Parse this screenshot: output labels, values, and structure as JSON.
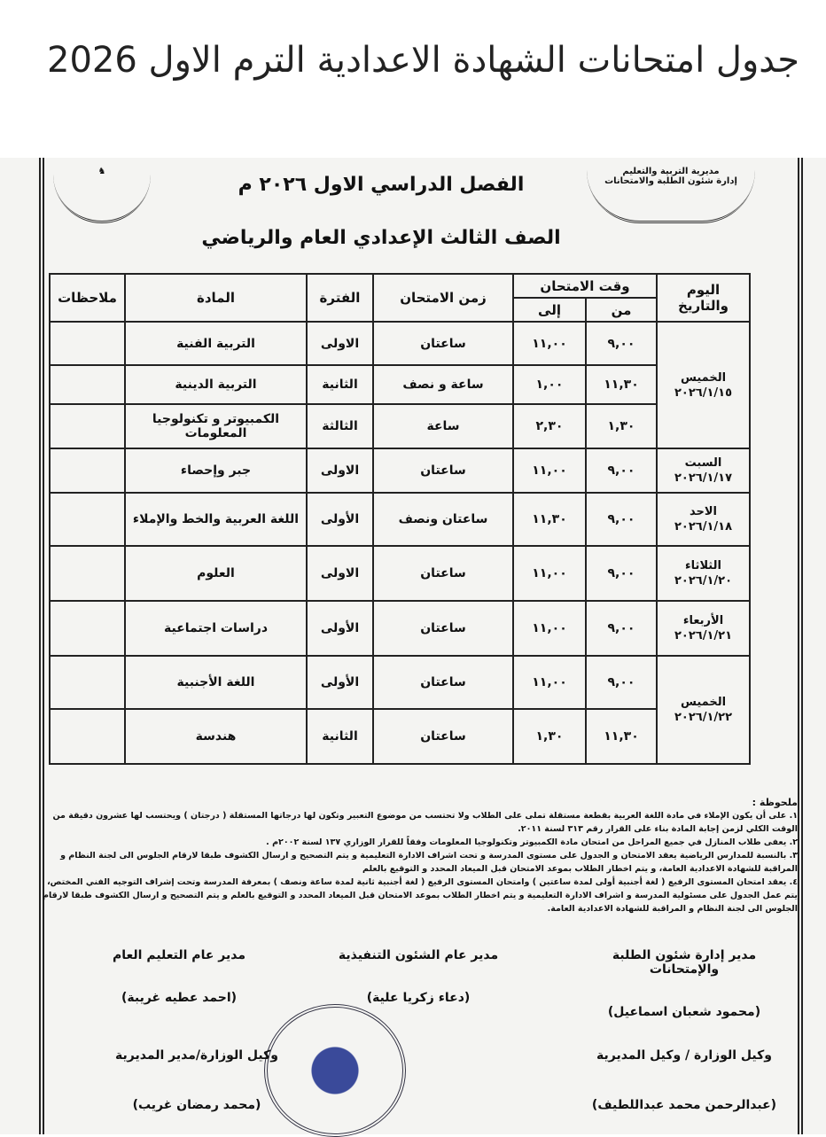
{
  "post_title": "جدول امتحانات الشهادة الاعدادية الترم الاول 2026",
  "document": {
    "org_right": [
      "مديرية التربية والتعليم",
      "إدارة شئون الطلبة والامتحانات"
    ],
    "term_title": "الفصل الدراسي الاول ٢٠٢٦ م",
    "grade_title": "الصف الثالث الإعدادي العام والرياضي",
    "headers": {
      "day_date": "اليوم والتاريخ",
      "exam_time": "وقت الامتحان",
      "from": "من",
      "to": "إلى",
      "duration": "زمن الامتحان",
      "period": "الفترة",
      "subject": "المادة",
      "notes": "ملاحظات"
    },
    "days": [
      {
        "day": "الخميس",
        "date": "٢٠٢٦/١/١٥",
        "rows": [
          {
            "from": "٩,٠٠",
            "to": "١١,٠٠",
            "duration": "ساعتان",
            "period": "الاولى",
            "subject": "التربية الفنية"
          },
          {
            "from": "١١,٣٠",
            "to": "١,٠٠",
            "duration": "ساعة و نصف",
            "period": "الثانية",
            "subject": "التربية الدينية"
          },
          {
            "from": "١,٣٠",
            "to": "٢,٣٠",
            "duration": "ساعة",
            "period": "الثالثة",
            "subject": "الكمبيوتر و تكنولوجيا المعلومات"
          }
        ]
      },
      {
        "day": "السبت",
        "date": "٢٠٢٦/١/١٧",
        "rows": [
          {
            "from": "٩,٠٠",
            "to": "١١,٠٠",
            "duration": "ساعتان",
            "period": "الاولى",
            "subject": "جبر وإحصاء"
          }
        ]
      },
      {
        "day": "الاحد",
        "date": "٢٠٢٦/١/١٨",
        "rows": [
          {
            "from": "٩,٠٠",
            "to": "١١,٣٠",
            "duration": "ساعتان ونصف",
            "period": "الأولى",
            "subject": "اللغة العربية والخط والإملاء"
          }
        ]
      },
      {
        "day": "الثلاثاء",
        "date": "٢٠٢٦/١/٢٠",
        "rows": [
          {
            "from": "٩,٠٠",
            "to": "١١,٠٠",
            "duration": "ساعتان",
            "period": "الاولى",
            "subject": "العلوم"
          }
        ]
      },
      {
        "day": "الأربعاء",
        "date": "٢٠٢٦/١/٢١",
        "rows": [
          {
            "from": "٩,٠٠",
            "to": "١١,٠٠",
            "duration": "ساعتان",
            "period": "الأولى",
            "subject": "دراسات اجتماعية"
          }
        ]
      },
      {
        "day": "الخميس",
        "date": "٢٠٢٦/١/٢٢",
        "rows": [
          {
            "from": "٩,٠٠",
            "to": "١١,٠٠",
            "duration": "ساعتان",
            "period": "الأولى",
            "subject": "اللغة الأجنبية"
          },
          {
            "from": "١١,٣٠",
            "to": "١,٣٠",
            "duration": "ساعتان",
            "period": "الثانية",
            "subject": "هندسة"
          }
        ]
      }
    ],
    "notes_label": "ملحوظة :",
    "notes": [
      "١. على أن يكون الإملاء في مادة اللغة العربية بقطعة مستقلة تملى على الطلاب ولا تحتسب من موضوع التعبير وتكون لها درجاتها المستقلة ( درجتان ) ويحتسب لها عشرون دقيقة من الوقت الكلي لزمن إجابة المادة بناء على القرار رقم ٣١٣ لسنة ٢٠١١.",
      "٢. يعفى طلاب المنازل في جميع المراحل من امتحان مادة الكمبيوتر وتكنولوجيا المعلومات وفقاً للقرار الوزاري ١٣٧ لسنة ٢٠٠٢م .",
      "٣. بالنسبة للمدارس الرياضية يعقد الامتحان و الجدول على مستوى المدرسة و تحت اشراف الادارة التعليمية و يتم التصحيح و ارسال الكشوف طبقا لارقام الجلوس الى لجنة النظام و المراقبة للشهادة الاعدادية العامة، و يتم اخطار الطلاب بموعد الامتحان قبل الميعاد المحدد و التوقيع بالعلم",
      "٤. يعقد امتحان المستوى الرفيع ( لغة أجنبية أولى لمدة ساعتين ) وامتحان المستوى الرفيع ( لغة أجنبية ثانية لمدة ساعة ونصف ) بمعرفة المدرسة وتحت إشراف التوجيه الفني المختص، يتم عمل الجدول على مسئولية المدرسة و اشراف الادارة التعليمية و يتم اخطار الطلاب بموعد الامتحان قبل الميعاد المحدد و التوقيع بالعلم و يتم التصحيح و ارسال الكشوف طبقا لارقام الجلوس الى لجنة النظام و المراقبة للشهادة الاعدادية العامة."
    ],
    "signatures": [
      {
        "title": "مدير إدارة شئون الطلبة والإمتحانات",
        "name": "(محمود شعبان اسماعيل)"
      },
      {
        "title": "مدير عام الشئون التنفيذية",
        "name": "(دعاء زكريا علية)"
      },
      {
        "title": "مدير عام التعليم العام",
        "name": "(احمد عطيه غريبة)"
      },
      {
        "title": "وكيل الوزارة / وكيل المديرية",
        "name": "(عبدالرحمن محمد عبداللطيف)"
      },
      {
        "title": "وكيل الوزارة/مدير المديرية",
        "name": "(محمد رمضان غريب)"
      }
    ]
  }
}
